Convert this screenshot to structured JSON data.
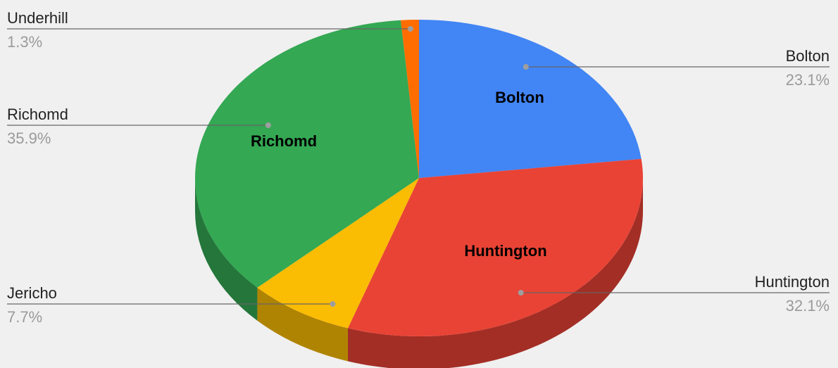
{
  "chart_data": {
    "type": "pie",
    "style": "3d",
    "title": "",
    "slices": [
      {
        "label": "Bolton",
        "value": 23.1,
        "percent_label": "23.1%",
        "color": "#4285f4",
        "side_color": "#2e5cab",
        "inner_label": "Bolton",
        "label_side": "right"
      },
      {
        "label": "Huntington",
        "value": 32.1,
        "percent_label": "32.1%",
        "color": "#e94335",
        "side_color": "#a32e25",
        "inner_label": "Huntington",
        "label_side": "right"
      },
      {
        "label": "Jericho",
        "value": 7.7,
        "percent_label": "7.7%",
        "color": "#fbbc04",
        "side_color": "#b08403",
        "inner_label": "",
        "label_side": "left"
      },
      {
        "label": "Richomd",
        "value": 35.9,
        "percent_label": "35.9%",
        "color": "#34a853",
        "side_color": "#24763a",
        "inner_label": "Richomd",
        "label_side": "left"
      },
      {
        "label": "Underhill",
        "value": 1.3,
        "percent_label": "1.3%",
        "color": "#ff6d01",
        "side_color": "#b34c01",
        "inner_label": "",
        "label_side": "left"
      }
    ],
    "legend": "none",
    "background": "#f0f0f0"
  }
}
